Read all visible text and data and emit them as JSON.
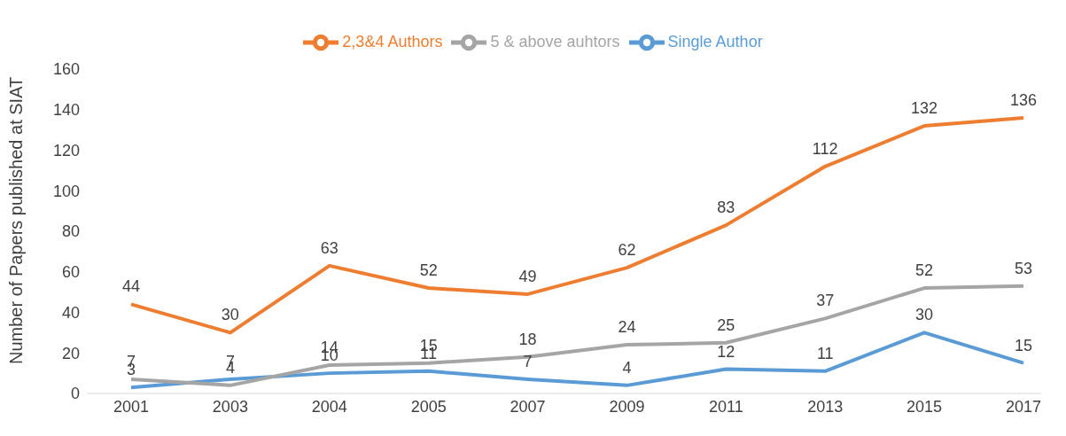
{
  "chart_data": {
    "type": "line",
    "ylabel": "Number of Papers published at SIAT",
    "categories": [
      "2001",
      "2003",
      "2004",
      "2005",
      "2007",
      "2009",
      "2011",
      "2013",
      "2015",
      "2017"
    ],
    "series": [
      {
        "name": "Single Author",
        "color": "#5b9bd5",
        "values": [
          3,
          7,
          10,
          11,
          7,
          4,
          12,
          11,
          30,
          15
        ]
      },
      {
        "name": "2,3&4 Authors",
        "color": "#ed7d31",
        "values": [
          44,
          30,
          63,
          52,
          49,
          62,
          83,
          112,
          132,
          136
        ]
      },
      {
        "name": "5 & above auhtors",
        "color": "#a5a5a5",
        "values": [
          7,
          4,
          14,
          15,
          18,
          24,
          25,
          37,
          52,
          53
        ]
      }
    ],
    "ylim": [
      0,
      160
    ],
    "yticks": [
      0,
      20,
      40,
      60,
      80,
      100,
      120,
      140,
      160
    ],
    "grid": false,
    "legend": "top",
    "marker": "none",
    "line_style": "solid",
    "data_labels": true
  }
}
